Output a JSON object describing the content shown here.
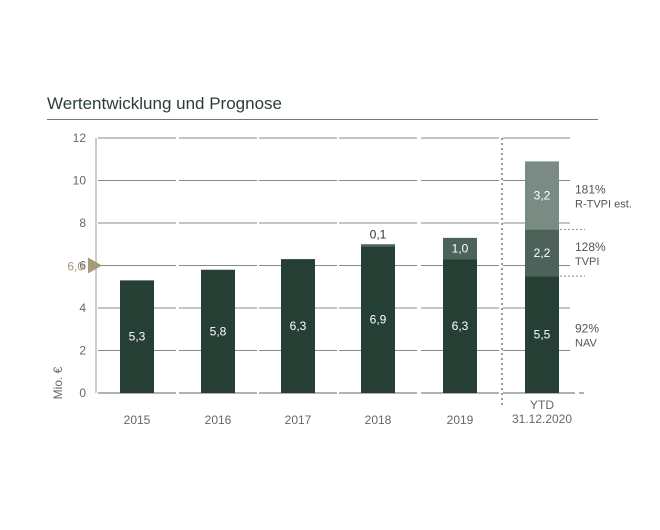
{
  "chart_data": {
    "type": "bar",
    "title": "Wertentwicklung und Prognose",
    "ylabel": "Mio. €",
    "xlabel": "",
    "ylim": [
      0,
      12
    ],
    "yticks": [
      "0",
      "2",
      "4",
      "6",
      "8",
      "10",
      "12"
    ],
    "grid": true,
    "reference_marker": {
      "value": 6.0,
      "label": "6,0"
    },
    "categories": [
      {
        "label": "2015",
        "values": [
          5.3
        ],
        "labels": [
          "5,3"
        ]
      },
      {
        "label": "2016",
        "values": [
          5.8
        ],
        "labels": [
          "5,8"
        ]
      },
      {
        "label": "2017",
        "values": [
          6.3
        ],
        "labels": [
          "6,3"
        ]
      },
      {
        "label": "2018",
        "values": [
          6.9,
          0.1
        ],
        "labels": [
          "6,9",
          "0,1"
        ]
      },
      {
        "label": "2019",
        "values": [
          6.3,
          1.0
        ],
        "labels": [
          "6,3",
          "1,0"
        ]
      },
      {
        "label": [
          "YTD",
          "31.12.2020"
        ],
        "values": [
          5.5,
          2.2,
          3.2
        ],
        "labels": [
          "5,5",
          "2,2",
          "3,2"
        ]
      }
    ],
    "segment_annotations": [
      {
        "pct": "92%",
        "name": "NAV"
      },
      {
        "pct": "128%",
        "name": "TVPI"
      },
      {
        "pct": "181%",
        "name": "R-TVPI est."
      }
    ],
    "colors": {
      "base": "#263f34",
      "second": "#4d6258",
      "third": "#7a8b84",
      "marker": "#a79a7a",
      "grid": "#888888",
      "axis_text": "#666666",
      "title": "#2b3f36"
    }
  }
}
